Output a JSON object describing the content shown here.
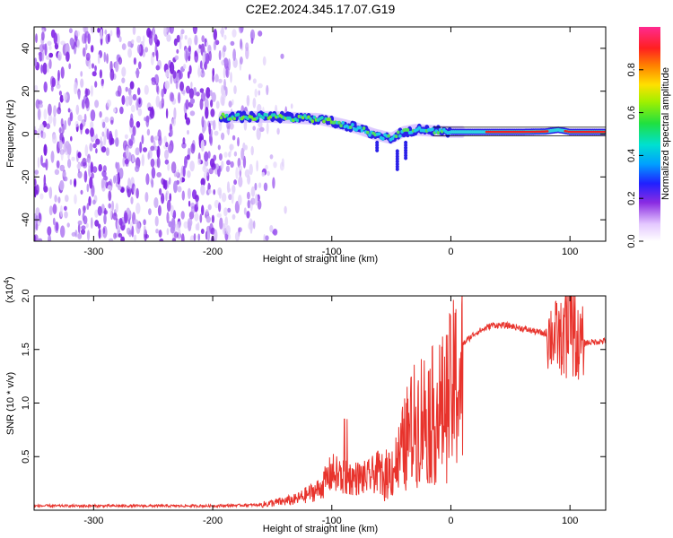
{
  "title": "C2E2.2024.345.17.07.G19",
  "chart_data": [
    {
      "type": "heatmap",
      "name": "spectrogram",
      "xlabel": "Height of straight line (km)",
      "ylabel": "Frequency (Hz)",
      "xlim": [
        -350,
        130
      ],
      "ylim": [
        -50,
        50
      ],
      "xticks": [
        -300,
        -200,
        -100,
        0,
        100
      ],
      "yticks": [
        -40,
        -20,
        0,
        20,
        40
      ],
      "colorbar": {
        "label": "Normalized spectral amplitude",
        "range": [
          0.0,
          1.0
        ],
        "ticks": [
          0.0,
          0.2,
          0.4,
          0.6,
          0.8
        ],
        "tick_labels": [
          "0.0",
          "0.2",
          "0.4",
          "0.6",
          "0.8"
        ]
      },
      "noise_region_x": [
        -350,
        -150
      ],
      "signal_trace": {
        "x": [
          -193,
          -170,
          -150,
          -130,
          -110,
          -95,
          -80,
          -65,
          -50,
          -40,
          -30,
          -15,
          0,
          20,
          40,
          60,
          80,
          90,
          100,
          130
        ],
        "freq": [
          8,
          8,
          8,
          7.5,
          7,
          5,
          3,
          0,
          -2,
          1,
          2,
          1.5,
          1,
          1,
          1,
          1,
          1.2,
          2,
          1,
          1
        ]
      }
    },
    {
      "type": "line",
      "name": "snr",
      "xlabel": "Height of straight line (km)",
      "ylabel": "SNR (10 * v/v)",
      "y_multiplier": "(x10",
      "y_multiplier_exp": "4",
      "y_multiplier_close": ")",
      "xlim": [
        -350,
        130
      ],
      "ylim": [
        0,
        2.0
      ],
      "xticks": [
        -300,
        -200,
        -100,
        0,
        100
      ],
      "yticks": [
        0.5,
        1.0,
        1.5,
        2.0
      ],
      "ytick_labels": [
        "0.5",
        "1.0",
        "1.5",
        "2.0"
      ],
      "color": "#e8332c",
      "envelope": {
        "x": [
          -350,
          -200,
          -160,
          -130,
          -110,
          -100,
          -90,
          -70,
          -55,
          -45,
          -35,
          -25,
          -15,
          -5,
          5,
          20,
          35,
          50,
          70,
          90,
          100,
          110,
          130
        ],
        "y": [
          0.04,
          0.04,
          0.05,
          0.1,
          0.2,
          0.35,
          0.3,
          0.3,
          0.4,
          0.55,
          0.9,
          1.1,
          1.1,
          1.2,
          1.5,
          1.65,
          1.73,
          1.72,
          1.67,
          1.62,
          1.55,
          1.56,
          1.58
        ]
      }
    }
  ]
}
